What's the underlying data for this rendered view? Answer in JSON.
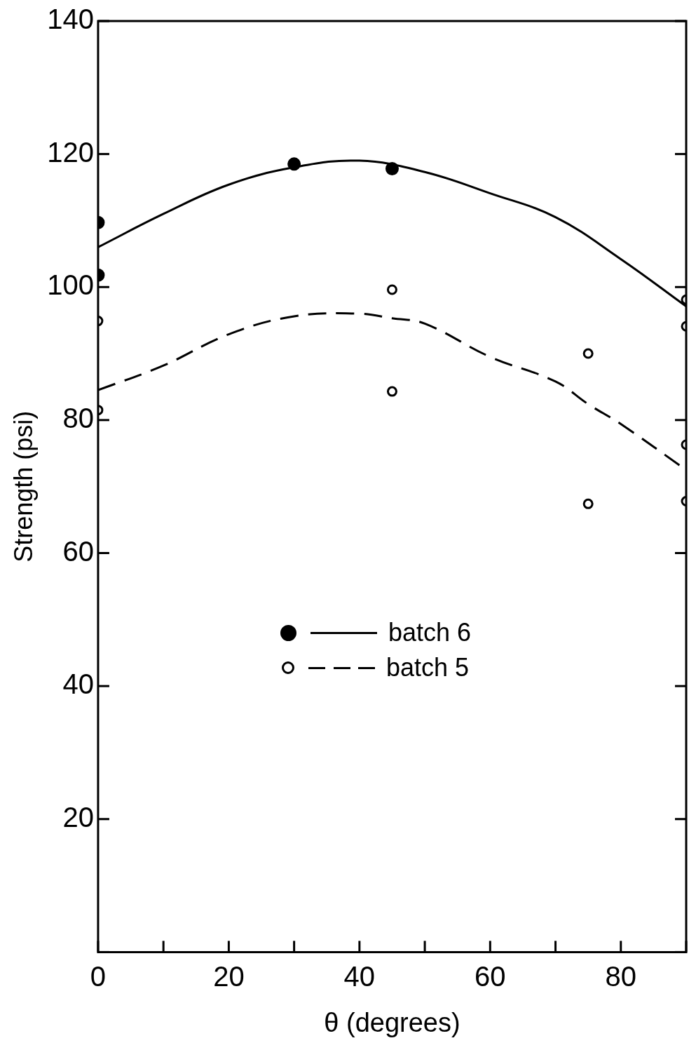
{
  "chart_data": {
    "type": "scatter",
    "xlabel": "θ (degrees)",
    "ylabel": "Strength (psi)",
    "xlim": [
      0,
      90
    ],
    "ylim": [
      0,
      140
    ],
    "xticks": [
      0,
      {
        "value": 10,
        "label": null
      },
      20,
      {
        "value": 30,
        "label": null
      },
      40,
      {
        "value": 50,
        "label": null
      },
      60,
      {
        "value": 70,
        "label": null
      },
      80,
      {
        "value": 90,
        "label": null
      }
    ],
    "yticks": [
      {
        "value": 0,
        "label": null
      },
      20,
      40,
      60,
      80,
      100,
      120,
      140
    ],
    "grid": false,
    "legend": "left",
    "series": [
      {
        "name": "batch 6",
        "marker": "circle",
        "color": "#000000",
        "x": [
          0,
          0,
          30,
          45
        ],
        "values": [
          109.7,
          101.8,
          118.5,
          117.8
        ]
      },
      {
        "type": "line",
        "marker": "none",
        "line_style": "solid",
        "color": "#000000",
        "x": [
          0,
          10,
          20,
          30,
          40,
          50,
          60,
          70,
          80,
          90
        ],
        "values": [
          106,
          111,
          115.4,
          118,
          119,
          117.3,
          114.1,
          110.5,
          104.2,
          97.1
        ]
      },
      {
        "name": "batch 5",
        "marker": "circle",
        "color": "#000000",
        "x": [
          0,
          0,
          45,
          45,
          75,
          75,
          90,
          90,
          90,
          90
        ],
        "values": [
          94.9,
          81.5,
          99.6,
          84.3,
          90,
          67.4,
          98.1,
          94.1,
          76.3,
          67.8
        ]
      },
      {
        "type": "line",
        "marker": "none",
        "line_style": "dashed",
        "color": "#000000",
        "x": [
          0,
          10,
          20,
          30,
          40,
          45,
          50,
          60,
          70,
          75,
          80,
          90
        ],
        "values": [
          84.5,
          88.2,
          92.9,
          95.6,
          96,
          95.3,
          94.5,
          89.5,
          85.8,
          82.4,
          79.4,
          72.5
        ]
      }
    ]
  }
}
